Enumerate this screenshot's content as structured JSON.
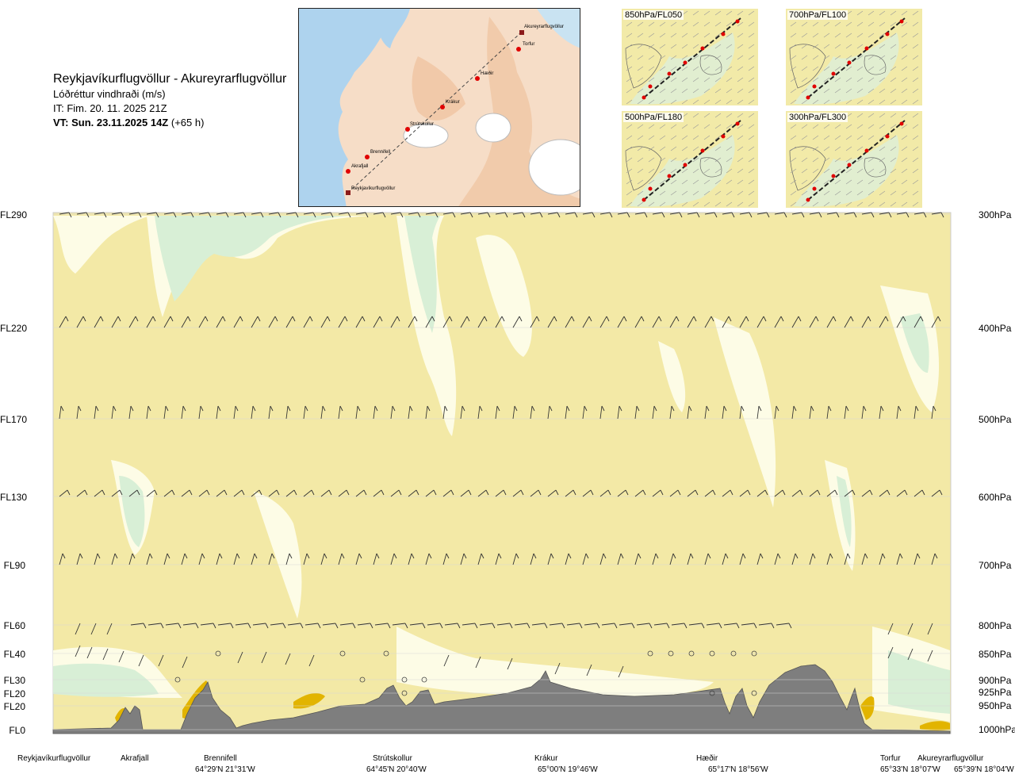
{
  "title": {
    "route": "Reykjavíkurflugvöllur - Akureyrarflugvöllur",
    "subtitle": "Lóðréttur vindhraði (m/s)",
    "it": "IT: Fim. 20. 11. 2025 21Z",
    "vt_bold": "VT: Sun. 23.11.2025 14Z",
    "vt_offset": " (+65 h)"
  },
  "route_map": {
    "waypoints": [
      "Akureyrarflugvöllur",
      "Torfur",
      "Hæðir",
      "Krákur",
      "Strútskollur",
      "Brennifell",
      "Akrafjall",
      "Reykjavíkurflugvöllur"
    ]
  },
  "mini_maps": [
    {
      "label": "850hPa/FL050"
    },
    {
      "label": "700hPa/FL100"
    },
    {
      "label": "500hPa/FL180"
    },
    {
      "label": "300hPa/FL300"
    }
  ],
  "levels": {
    "fl": [
      "FL290",
      "FL220",
      "FL170",
      "FL130",
      "FL90",
      "FL60",
      "FL40",
      "FL30",
      "FL20",
      "FL20",
      "FL0"
    ],
    "hpa": [
      "300hPa",
      "400hPa",
      "500hPa",
      "600hPa",
      "700hPa",
      "800hPa",
      "850hPa",
      "900hPa",
      "925hPa",
      "950hPa",
      "1000hPa"
    ]
  },
  "locations": [
    {
      "name": "Reykjavíkurflugvöllur",
      "coord": ""
    },
    {
      "name": "Akrafjall",
      "coord": ""
    },
    {
      "name": "Brennifell",
      "coord": "64°29'N 21°31'W"
    },
    {
      "name": "Strútskollur",
      "coord": "64°45'N 20°40'W"
    },
    {
      "name": "Krákur",
      "coord": "65°00'N 19°46'W"
    },
    {
      "name": "Hæðir",
      "coord": "65°17'N 18°56'W"
    },
    {
      "name": "Torfur",
      "coord": "65°33'N 18°07'W"
    },
    {
      "name": "Akureyrarflugvöllur",
      "coord": "65°39'N 18°04'W"
    }
  ],
  "chart_data": {
    "type": "heatmap",
    "title": "Reykjavíkurflugvöllur - Akureyrarflugvöllur",
    "subtitle": "Lóðréttur vindhraði (m/s)",
    "y_levels_hpa": [
      300,
      400,
      500,
      600,
      700,
      800,
      850,
      900,
      925,
      950,
      1000
    ],
    "y_levels_fl": [
      "FL290",
      "FL220",
      "FL170",
      "FL130",
      "FL90",
      "FL60",
      "FL40",
      "FL30",
      "FL20",
      "FL20",
      "FL0"
    ],
    "x_locations": [
      "Reykjavíkurflugvöllur",
      "Akrafjall",
      "Brennifell",
      "Strútskollur",
      "Krákur",
      "Hæðir",
      "Torfur",
      "Akureyrarflugvöllur"
    ],
    "colors": {
      "background": "#f3e9a6",
      "weak_updraft": "#fdfce6",
      "updraft": "#d8efd6",
      "strong_updraft": "#b9deba",
      "downdraft": "#e2b400",
      "strong_downdraft": "#c84a00",
      "terrain": "#7e7e7e"
    }
  }
}
